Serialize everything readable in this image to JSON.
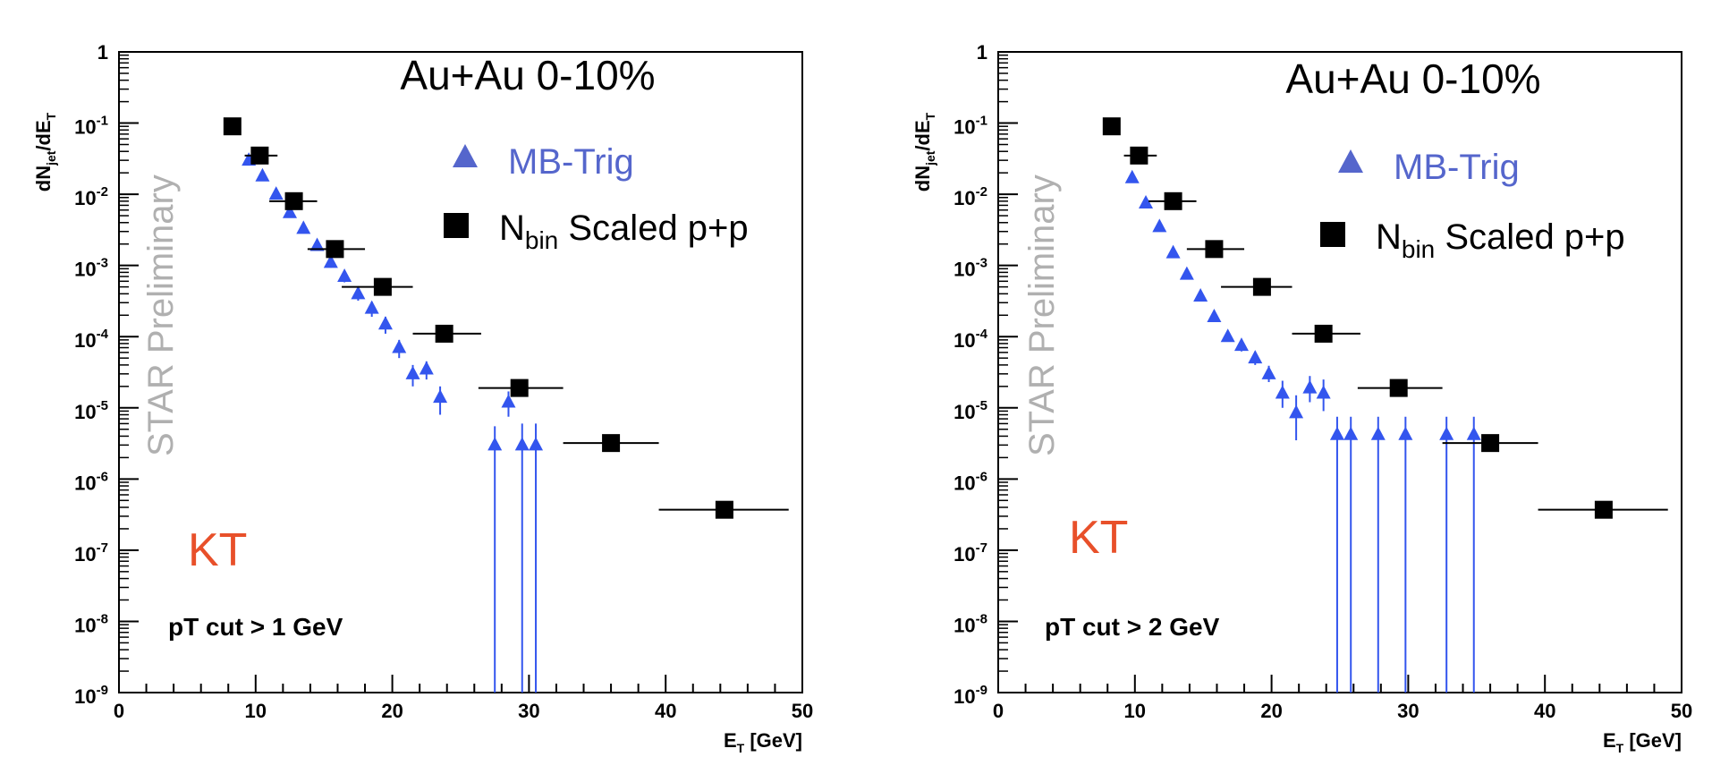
{
  "chart_data": [
    {
      "type": "scatter",
      "title": "Au+Au 0-10%",
      "watermark": "STAR Preliminary",
      "algorithm": "KT",
      "cut_label": "pT cut > 1 GeV",
      "xlabel": {
        "main": "E",
        "sub": "T",
        "unit": " [GeV]"
      },
      "ylabel": {
        "a": "dN",
        "b": "jet",
        "c": "/dE",
        "d": "T"
      },
      "xlim": [
        0,
        50
      ],
      "ylim_log10": [
        -9,
        0
      ],
      "x_ticks": [
        "0",
        "10",
        "20",
        "30",
        "40",
        "50"
      ],
      "y_ticks": [
        {
          "base": "1",
          "exp": ""
        },
        {
          "base": "10",
          "exp": "-1"
        },
        {
          "base": "10",
          "exp": "-2"
        },
        {
          "base": "10",
          "exp": "-3"
        },
        {
          "base": "10",
          "exp": "-4"
        },
        {
          "base": "10",
          "exp": "-5"
        },
        {
          "base": "10",
          "exp": "-6"
        },
        {
          "base": "10",
          "exp": "-7"
        },
        {
          "base": "10",
          "exp": "-8"
        },
        {
          "base": "10",
          "exp": "-9"
        }
      ],
      "legend": {
        "mb_label": "MB-Trig",
        "pp_main": "N",
        "pp_sub": "bin",
        "pp_rest": " Scaled p+p"
      },
      "series": [
        {
          "name": "MB-Trig",
          "marker": "triangle",
          "color": "#3355ee",
          "points": [
            [
              9.5,
              0.03
            ],
            [
              10.5,
              0.018
            ],
            [
              11.5,
              0.01
            ],
            [
              12.5,
              0.0055
            ],
            [
              13.5,
              0.0033
            ],
            [
              14.5,
              0.0019
            ],
            [
              15.5,
              0.0011
            ],
            [
              16.5,
              0.0007
            ],
            [
              17.5,
              0.0004
            ],
            [
              18.5,
              0.00025
            ],
            [
              19.5,
              0.00015
            ],
            [
              20.5,
              7e-05
            ],
            [
              21.5,
              3e-05
            ],
            [
              22.5,
              3.5e-05
            ],
            [
              23.5,
              1.4e-05
            ],
            [
              27.5,
              3e-06
            ],
            [
              28.5,
              1.2e-05
            ],
            [
              29.5,
              3e-06
            ],
            [
              30.5,
              3e-06
            ]
          ],
          "y_err": [
            [
              0.026,
              0.034
            ],
            [
              0.016,
              0.02
            ],
            [
              0.009,
              0.011
            ],
            [
              0.0049,
              0.0061
            ],
            [
              0.0029,
              0.0037
            ],
            [
              0.0016,
              0.0022
            ],
            [
              0.00093,
              0.0013
            ],
            [
              0.00058,
              0.00082
            ],
            [
              0.00032,
              0.00048
            ],
            [
              0.00019,
              0.00031
            ],
            [
              0.00011,
              0.00019
            ],
            [
              5e-05,
              9e-05
            ],
            [
              2e-05,
              4e-05
            ],
            [
              2.5e-05,
              4.5e-05
            ],
            [
              8e-06,
              2e-05
            ],
            [
              1e-09,
              5.5e-06
            ],
            [
              7.5e-06,
              1.7e-05
            ],
            [
              1e-09,
              6e-06
            ],
            [
              1e-09,
              6e-06
            ]
          ]
        },
        {
          "name": "N_bin Scaled p+p",
          "marker": "square",
          "color": "#000000",
          "points": [
            [
              8.3,
              0.09
            ],
            [
              10.3,
              0.035
            ],
            [
              12.8,
              0.008
            ],
            [
              15.8,
              0.0017
            ],
            [
              19.3,
              0.0005
            ],
            [
              23.8,
              0.00011
            ],
            [
              29.3,
              1.9e-05
            ],
            [
              36.0,
              3.2e-06
            ],
            [
              44.3,
              3.7e-07
            ]
          ],
          "x_err": [
            [
              7.8,
              8.9
            ],
            [
              9.2,
              11.6
            ],
            [
              11.0,
              14.5
            ],
            [
              13.8,
              18.0
            ],
            [
              16.3,
              21.5
            ],
            [
              21.5,
              26.5
            ],
            [
              26.3,
              32.5
            ],
            [
              32.5,
              39.5
            ],
            [
              39.5,
              49.0
            ]
          ]
        }
      ]
    },
    {
      "type": "scatter",
      "title": "Au+Au 0-10%",
      "watermark": "STAR Preliminary",
      "algorithm": "KT",
      "cut_label": "pT cut > 2 GeV",
      "xlabel": {
        "main": "E",
        "sub": "T",
        "unit": " [GeV]"
      },
      "ylabel": {
        "a": "dN",
        "b": "jet",
        "c": "/dE",
        "d": "T"
      },
      "xlim": [
        0,
        50
      ],
      "ylim_log10": [
        -9,
        0
      ],
      "x_ticks": [
        "0",
        "10",
        "20",
        "30",
        "40",
        "50"
      ],
      "y_ticks": [
        {
          "base": "1",
          "exp": ""
        },
        {
          "base": "10",
          "exp": "-1"
        },
        {
          "base": "10",
          "exp": "-2"
        },
        {
          "base": "10",
          "exp": "-3"
        },
        {
          "base": "10",
          "exp": "-4"
        },
        {
          "base": "10",
          "exp": "-5"
        },
        {
          "base": "10",
          "exp": "-6"
        },
        {
          "base": "10",
          "exp": "-7"
        },
        {
          "base": "10",
          "exp": "-8"
        },
        {
          "base": "10",
          "exp": "-9"
        }
      ],
      "legend": {
        "mb_label": "MB-Trig",
        "pp_main": "N",
        "pp_sub": "bin",
        "pp_rest": " Scaled p+p"
      },
      "series": [
        {
          "name": "MB-Trig",
          "marker": "triangle",
          "color": "#3355ee",
          "points": [
            [
              9.8,
              0.017
            ],
            [
              10.8,
              0.0075
            ],
            [
              11.8,
              0.0035
            ],
            [
              12.8,
              0.0015
            ],
            [
              13.8,
              0.00075
            ],
            [
              14.8,
              0.00037
            ],
            [
              15.8,
              0.00019
            ],
            [
              16.8,
              0.0001
            ],
            [
              17.8,
              7.5e-05
            ],
            [
              18.8,
              5e-05
            ],
            [
              19.8,
              3e-05
            ],
            [
              20.8,
              1.6e-05
            ],
            [
              21.8,
              8.5e-06
            ],
            [
              22.8,
              1.9e-05
            ],
            [
              23.8,
              1.6e-05
            ],
            [
              24.8,
              4.2e-06
            ],
            [
              25.8,
              4.2e-06
            ],
            [
              27.8,
              4.2e-06
            ],
            [
              29.8,
              4.2e-06
            ],
            [
              32.8,
              4.2e-06
            ],
            [
              34.8,
              4.2e-06
            ]
          ],
          "y_err": [
            [
              0.015,
              0.019
            ],
            [
              0.0066,
              0.0084
            ],
            [
              0.0031,
              0.0039
            ],
            [
              0.0013,
              0.0017
            ],
            [
              0.00066,
              0.00084
            ],
            [
              0.00032,
              0.00042
            ],
            [
              0.00016,
              0.00022
            ],
            [
              8.5e-05,
              0.000118
            ],
            [
              6.2e-05,
              9e-05
            ],
            [
              4e-05,
              6.2e-05
            ],
            [
              2.3e-05,
              3.9e-05
            ],
            [
              1e-05,
              2.4e-05
            ],
            [
              3.5e-06,
              1.5e-05
            ],
            [
              1.2e-05,
              2.8e-05
            ],
            [
              9e-06,
              2.5e-05
            ],
            [
              1e-09,
              7.5e-06
            ],
            [
              1e-09,
              7.5e-06
            ],
            [
              1e-09,
              7.5e-06
            ],
            [
              1e-09,
              7.5e-06
            ],
            [
              1e-09,
              7.5e-06
            ],
            [
              1e-09,
              7.5e-06
            ]
          ]
        },
        {
          "name": "N_bin Scaled p+p",
          "marker": "square",
          "color": "#000000",
          "points": [
            [
              8.3,
              0.09
            ],
            [
              10.3,
              0.035
            ],
            [
              12.8,
              0.008
            ],
            [
              15.8,
              0.0017
            ],
            [
              19.3,
              0.0005
            ],
            [
              23.8,
              0.00011
            ],
            [
              29.3,
              1.9e-05
            ],
            [
              36.0,
              3.2e-06
            ],
            [
              44.3,
              3.7e-07
            ]
          ],
          "x_err": [
            [
              7.8,
              8.9
            ],
            [
              9.2,
              11.6
            ],
            [
              11.0,
              14.5
            ],
            [
              13.8,
              18.0
            ],
            [
              16.3,
              21.5
            ],
            [
              21.5,
              26.5
            ],
            [
              26.3,
              32.5
            ],
            [
              32.5,
              39.5
            ],
            [
              39.5,
              49.0
            ]
          ]
        }
      ]
    }
  ]
}
